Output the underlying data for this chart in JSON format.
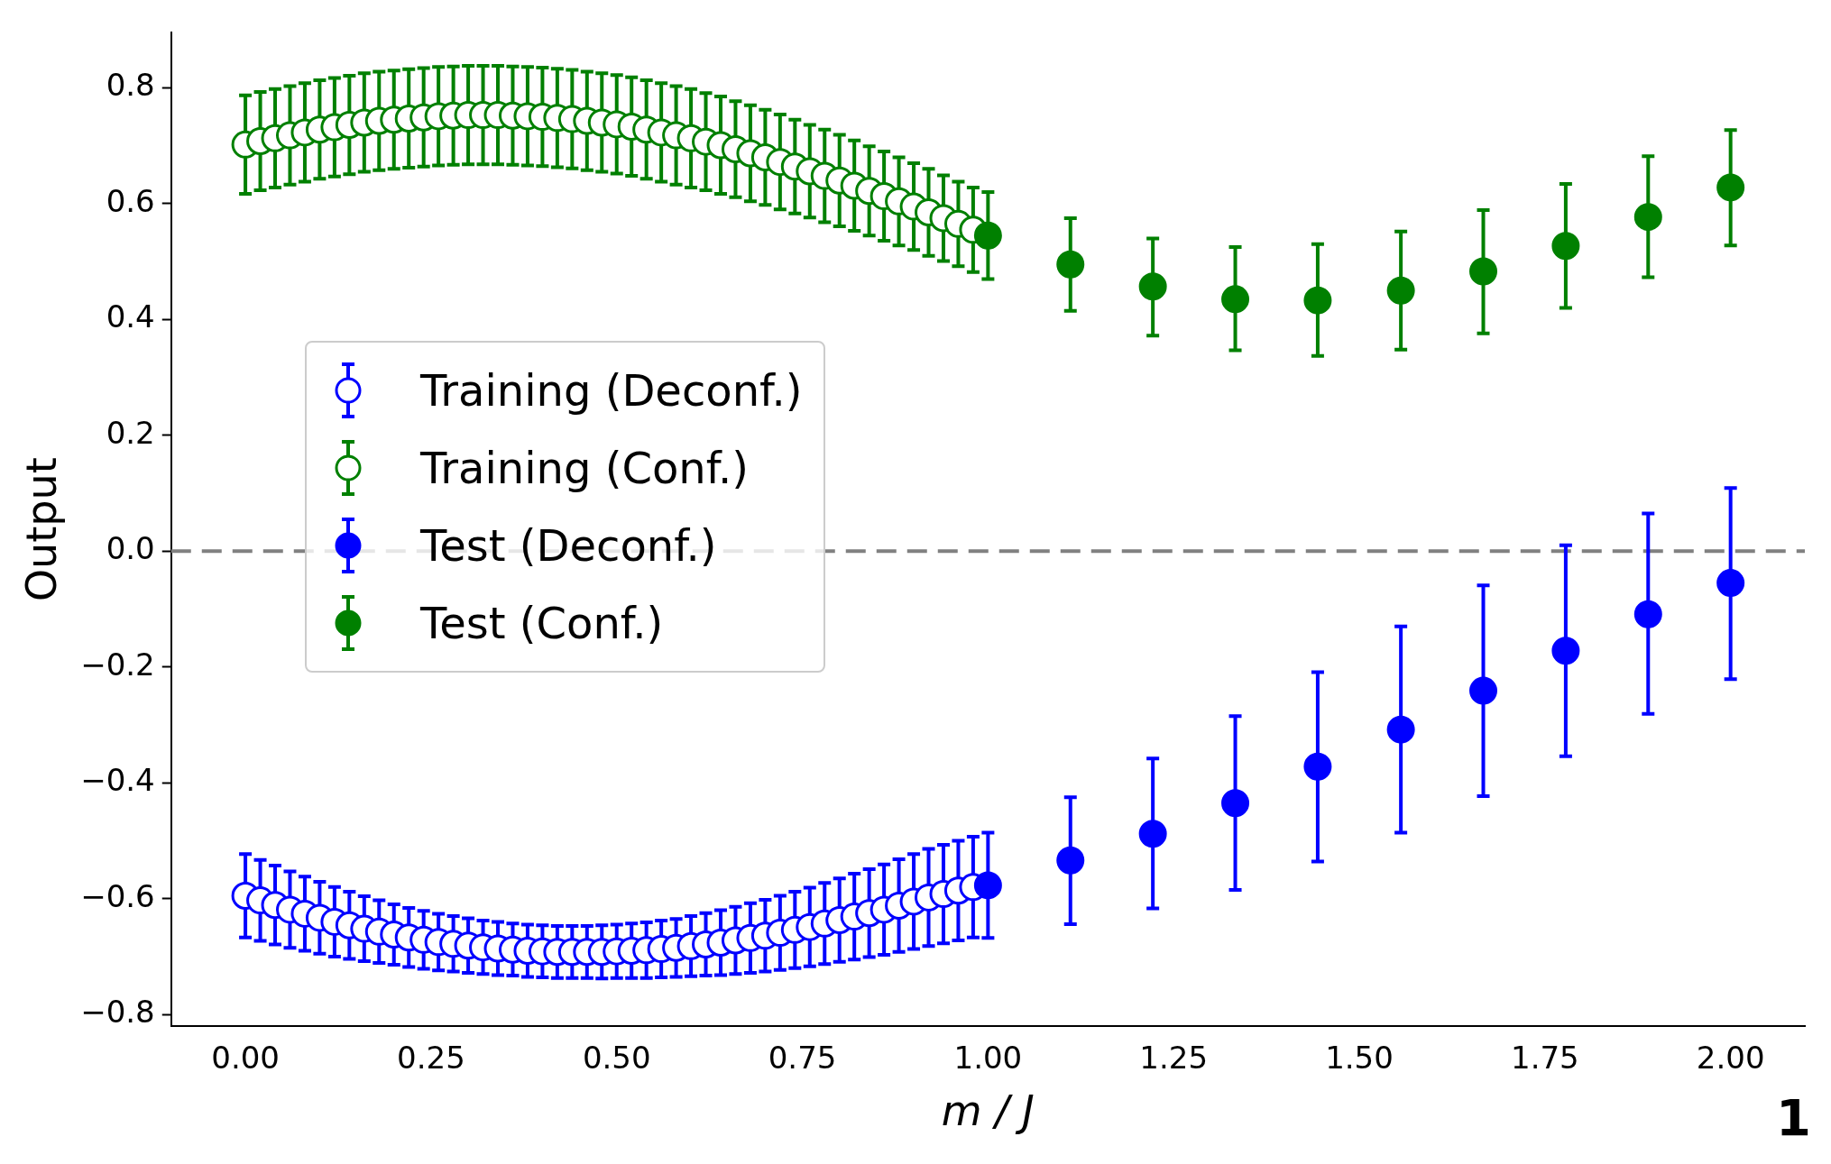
{
  "chart_data": {
    "type": "scatter",
    "xlabel": "m / J",
    "ylabel": "Output",
    "legend": "center left",
    "grid": false,
    "marker": "circle",
    "xlim": [
      -0.1,
      2.1
    ],
    "ylim": [
      -0.82,
      0.895
    ],
    "xticks": [
      {
        "value": 0,
        "label": "0.00"
      },
      {
        "value": 0.25,
        "label": "0.25"
      },
      {
        "value": 0.5,
        "label": "0.50"
      },
      {
        "value": 0.75,
        "label": "0.75"
      },
      {
        "value": 1,
        "label": "1.00"
      },
      {
        "value": 1.25,
        "label": "1.25"
      },
      {
        "value": 1.5,
        "label": "1.50"
      },
      {
        "value": 1.75,
        "label": "1.75"
      },
      {
        "value": 2,
        "label": "2.00"
      }
    ],
    "yticks": [
      {
        "value": -0.8,
        "label": "−0.8"
      },
      {
        "value": -0.6,
        "label": "−0.6"
      },
      {
        "value": -0.4,
        "label": "−0.4"
      },
      {
        "value": -0.2,
        "label": "−0.2"
      },
      {
        "value": 0,
        "label": "0.0"
      },
      {
        "value": 0.2,
        "label": "0.2"
      },
      {
        "value": 0.4,
        "label": "0.4"
      },
      {
        "value": 0.6,
        "label": "0.6"
      },
      {
        "value": 0.8,
        "label": "0.8"
      }
    ],
    "ref_lines": [
      {
        "axis": "y",
        "value": 0,
        "color": "#808080",
        "line_style": "dashed"
      }
    ],
    "annotations": [
      "1"
    ],
    "series": [
      {
        "name": "Training (Deconf.)",
        "color": "#0000ff",
        "marker": "open circle",
        "x": [
          0,
          0.02,
          0.04,
          0.06,
          0.08,
          0.1,
          0.12,
          0.14,
          0.16,
          0.18,
          0.2,
          0.22,
          0.24,
          0.26,
          0.28,
          0.3,
          0.32,
          0.34,
          0.36,
          0.38,
          0.4,
          0.42,
          0.44,
          0.46,
          0.48,
          0.5,
          0.52,
          0.54,
          0.56,
          0.58,
          0.6,
          0.62,
          0.64,
          0.66,
          0.68,
          0.7,
          0.72,
          0.74,
          0.76,
          0.78,
          0.8,
          0.82,
          0.84,
          0.86,
          0.88,
          0.9,
          0.92,
          0.94,
          0.96,
          0.98
        ],
        "values": [
          -0.595,
          -0.603,
          -0.611,
          -0.619,
          -0.626,
          -0.633,
          -0.64,
          -0.646,
          -0.652,
          -0.657,
          -0.662,
          -0.667,
          -0.671,
          -0.675,
          -0.678,
          -0.681,
          -0.684,
          -0.686,
          -0.688,
          -0.69,
          -0.691,
          -0.692,
          -0.692,
          -0.692,
          -0.692,
          -0.691,
          -0.69,
          -0.689,
          -0.687,
          -0.685,
          -0.682,
          -0.679,
          -0.676,
          -0.672,
          -0.668,
          -0.664,
          -0.659,
          -0.654,
          -0.649,
          -0.643,
          -0.637,
          -0.631,
          -0.625,
          -0.619,
          -0.612,
          -0.605,
          -0.598,
          -0.592,
          -0.586,
          -0.58
        ],
        "errors": [
          0.072,
          0.07,
          0.068,
          0.066,
          0.064,
          0.062,
          0.06,
          0.058,
          0.056,
          0.054,
          0.052,
          0.051,
          0.05,
          0.049,
          0.048,
          0.047,
          0.046,
          0.046,
          0.045,
          0.045,
          0.045,
          0.045,
          0.045,
          0.045,
          0.046,
          0.046,
          0.047,
          0.048,
          0.049,
          0.05,
          0.052,
          0.054,
          0.056,
          0.058,
          0.06,
          0.062,
          0.064,
          0.066,
          0.068,
          0.07,
          0.072,
          0.074,
          0.076,
          0.078,
          0.08,
          0.082,
          0.084,
          0.085,
          0.086,
          0.087
        ]
      },
      {
        "name": "Training (Conf.)",
        "color": "#008000",
        "marker": "open circle",
        "x": [
          0,
          0.02,
          0.04,
          0.06,
          0.08,
          0.1,
          0.12,
          0.14,
          0.16,
          0.18,
          0.2,
          0.22,
          0.24,
          0.26,
          0.28,
          0.3,
          0.32,
          0.34,
          0.36,
          0.38,
          0.4,
          0.42,
          0.44,
          0.46,
          0.48,
          0.5,
          0.52,
          0.54,
          0.56,
          0.58,
          0.6,
          0.62,
          0.64,
          0.66,
          0.68,
          0.7,
          0.72,
          0.74,
          0.76,
          0.78,
          0.8,
          0.82,
          0.84,
          0.86,
          0.88,
          0.9,
          0.92,
          0.94,
          0.96,
          0.98
        ],
        "values": [
          0.702,
          0.708,
          0.713,
          0.718,
          0.723,
          0.728,
          0.732,
          0.736,
          0.74,
          0.743,
          0.745,
          0.747,
          0.749,
          0.751,
          0.752,
          0.753,
          0.753,
          0.753,
          0.752,
          0.751,
          0.75,
          0.748,
          0.746,
          0.743,
          0.74,
          0.737,
          0.733,
          0.728,
          0.723,
          0.718,
          0.713,
          0.707,
          0.701,
          0.694,
          0.687,
          0.68,
          0.672,
          0.664,
          0.656,
          0.648,
          0.64,
          0.631,
          0.622,
          0.613,
          0.604,
          0.595,
          0.585,
          0.575,
          0.565,
          0.555
        ],
        "errors": [
          0.085,
          0.085,
          0.085,
          0.085,
          0.085,
          0.085,
          0.085,
          0.085,
          0.085,
          0.085,
          0.085,
          0.085,
          0.085,
          0.085,
          0.085,
          0.085,
          0.085,
          0.085,
          0.085,
          0.085,
          0.085,
          0.085,
          0.085,
          0.085,
          0.085,
          0.085,
          0.085,
          0.085,
          0.085,
          0.085,
          0.085,
          0.084,
          0.084,
          0.083,
          0.083,
          0.082,
          0.082,
          0.081,
          0.08,
          0.08,
          0.079,
          0.078,
          0.077,
          0.077,
          0.076,
          0.075,
          0.075,
          0.074,
          0.073,
          0.073
        ]
      },
      {
        "name": "Test (Deconf.)",
        "color": "#0000ff",
        "x": [
          1,
          1.111,
          1.222,
          1.333,
          1.444,
          1.556,
          1.667,
          1.778,
          1.889,
          2
        ],
        "values": [
          -0.577,
          -0.534,
          -0.488,
          -0.435,
          -0.372,
          -0.308,
          -0.241,
          -0.172,
          -0.109,
          -0.055
        ],
        "errors": [
          [
            -0.668,
            -0.486
          ],
          [
            -0.644,
            -0.425
          ],
          [
            -0.617,
            -0.358
          ],
          [
            -0.585,
            -0.285
          ],
          [
            -0.536,
            -0.209
          ],
          [
            -0.486,
            -0.13
          ],
          [
            -0.423,
            -0.059
          ],
          [
            -0.354,
            0.01
          ],
          [
            -0.281,
            0.065
          ],
          [
            -0.221,
            0.109
          ]
        ]
      },
      {
        "name": "Test (Conf.)",
        "color": "#008000",
        "x": [
          1,
          1.111,
          1.222,
          1.333,
          1.444,
          1.556,
          1.667,
          1.778,
          1.889,
          2
        ],
        "values": [
          0.545,
          0.495,
          0.457,
          0.435,
          0.433,
          0.45,
          0.483,
          0.527,
          0.577,
          0.628
        ],
        "errors": [
          [
            0.47,
            0.62
          ],
          [
            0.415,
            0.575
          ],
          [
            0.372,
            0.54
          ],
          [
            0.347,
            0.525
          ],
          [
            0.337,
            0.53
          ],
          [
            0.348,
            0.552
          ],
          [
            0.376,
            0.589
          ],
          [
            0.42,
            0.634
          ],
          [
            0.473,
            0.682
          ],
          [
            0.528,
            0.727
          ]
        ]
      }
    ]
  }
}
